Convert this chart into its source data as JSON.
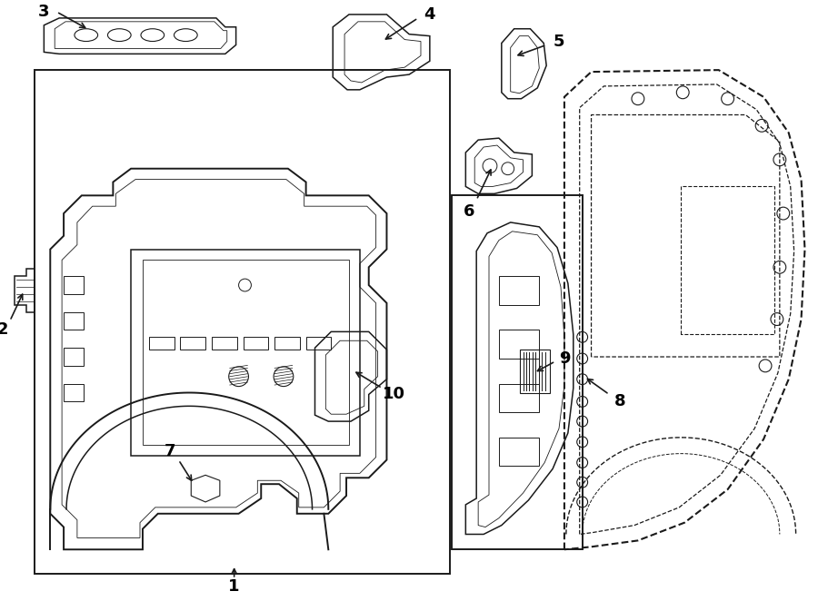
{
  "bg_color": "#ffffff",
  "line_color": "#1a1a1a",
  "fig_w": 9.0,
  "fig_h": 6.62,
  "lw_main": 1.4,
  "lw_part": 1.1,
  "lw_thin": 0.7
}
